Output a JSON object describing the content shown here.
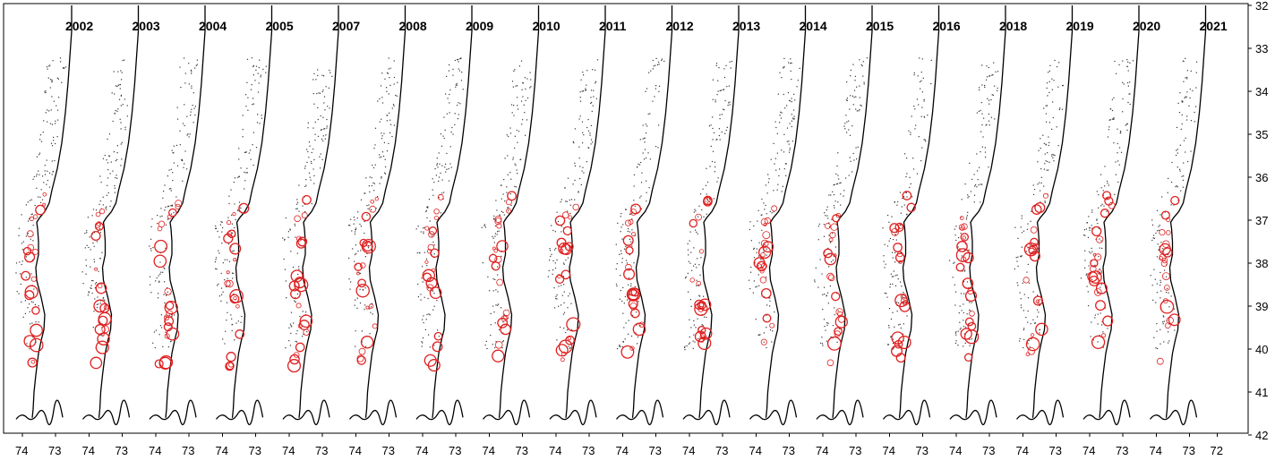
{
  "figure": {
    "panel_years": [
      "2002",
      "2003",
      "2004",
      "2005",
      "2007",
      "2008",
      "2009",
      "2010",
      "2011",
      "2012",
      "2013",
      "2014",
      "2015",
      "2016",
      "2018",
      "2019",
      "2020",
      "2021"
    ],
    "latitude_ticks": [
      "32",
      "33",
      "34",
      "35",
      "36",
      "37",
      "38",
      "39",
      "40",
      "41",
      "42"
    ],
    "longitude_ticks": [
      "74",
      "73",
      "74",
      "73",
      "74",
      "73",
      "74",
      "73",
      "74",
      "73",
      "74",
      "73",
      "74",
      "73",
      "74",
      "73",
      "74",
      "73",
      "74",
      "73",
      "74",
      "73",
      "74",
      "73",
      "74",
      "73",
      "74",
      "73",
      "74",
      "73",
      "74",
      "73",
      "74",
      "73",
      "74",
      "73",
      "72"
    ],
    "colors": {
      "coastline": "#000000",
      "survey_stations": "#333333",
      "catch_circles": "#e02020",
      "frame": "#000000"
    }
  }
}
